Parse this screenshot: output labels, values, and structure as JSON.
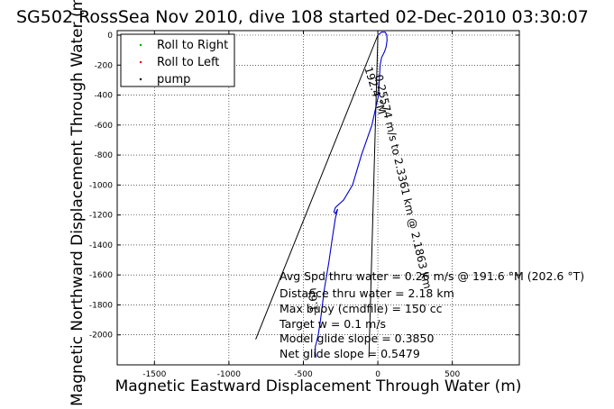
{
  "chart_data": {
    "type": "line",
    "title": "SG502 RossSea Nov 2010, dive 108 started 02-Dec-2010 03:30:07",
    "xlabel": "Magnetic Eastward Displacement Through Water (m)",
    "ylabel": "Magnetic Northward Displacement Through Water (m)",
    "xlim": [
      -1750,
      950
    ],
    "ylim": [
      -2200,
      30
    ],
    "xticks": [
      -1500,
      -1000,
      -500,
      0,
      500
    ],
    "xtick_labels": [
      "-1500",
      "-1000",
      "-500",
      "0",
      "500"
    ],
    "yticks": [
      0,
      -200,
      -400,
      -600,
      -800,
      -1000,
      -1200,
      -1400,
      -1600,
      -1800,
      -2000
    ],
    "ytick_labels": [
      "0",
      "-200",
      "-400",
      "-600",
      "-800",
      "-1000",
      "-1200",
      "-1400",
      "-1600",
      "-1800",
      "-2000"
    ],
    "grid": true,
    "legend_position": "top-left",
    "legend": [
      {
        "name": "Roll to Right",
        "color": "#00b000",
        "marker": "dot"
      },
      {
        "name": "Roll to Left",
        "color": "#ff0000",
        "marker": "dot"
      },
      {
        "name": "pump",
        "color": "#000000",
        "marker": "dot"
      }
    ],
    "series": [
      {
        "color": "#0000cc",
        "style": "solid",
        "x": [
          0,
          25,
          50,
          60,
          62,
          55,
          45,
          35,
          25,
          15,
          10,
          5,
          -40,
          -110,
          -170,
          -230,
          -285,
          -295,
          -285,
          -270,
          -285,
          -305,
          -330,
          -360,
          -385,
          -400,
          -412,
          -420,
          -420,
          -415
        ],
        "y": [
          0,
          20,
          20,
          0,
          -35,
          -80,
          -110,
          -130,
          -150,
          -200,
          -300,
          -400,
          -600,
          -800,
          -1000,
          -1100,
          -1150,
          -1180,
          -1190,
          -1160,
          -1220,
          -1350,
          -1520,
          -1700,
          -1900,
          -2000,
          -2050,
          -2080,
          -2120,
          -2150
        ]
      },
      {
        "color": "#000000",
        "style": "solid",
        "x": [
          0,
          -820
        ],
        "y": [
          0,
          -2030
        ]
      },
      {
        "color": "#000000",
        "style": "solid",
        "x": [
          0,
          -60
        ],
        "y": [
          0,
          -2150
        ]
      }
    ],
    "annotations": [
      {
        "text": "192.4 °M",
        "x": -90,
        "y": -220,
        "angle_deg": 73
      },
      {
        "text": "0.25574 m/s to 2.3361 km @ 2.1863 km",
        "x": -20,
        "y": -270,
        "angle_deg": 77
      },
      {
        "text": "-1.6h",
        "x": -400,
        "y": -1870,
        "angle_deg": -95
      }
    ],
    "stats": [
      "Avg Spd thru water =  0.26 m/s @ 191.6    °M (202.6 °T)",
      "Distance thru water =  2.18 km",
      "Max buoy (cmdfile) = 150 cc",
      "Target w = 0.1 m/s",
      "Model glide slope = 0.3850",
      "Net glide slope = 0.5479"
    ]
  }
}
